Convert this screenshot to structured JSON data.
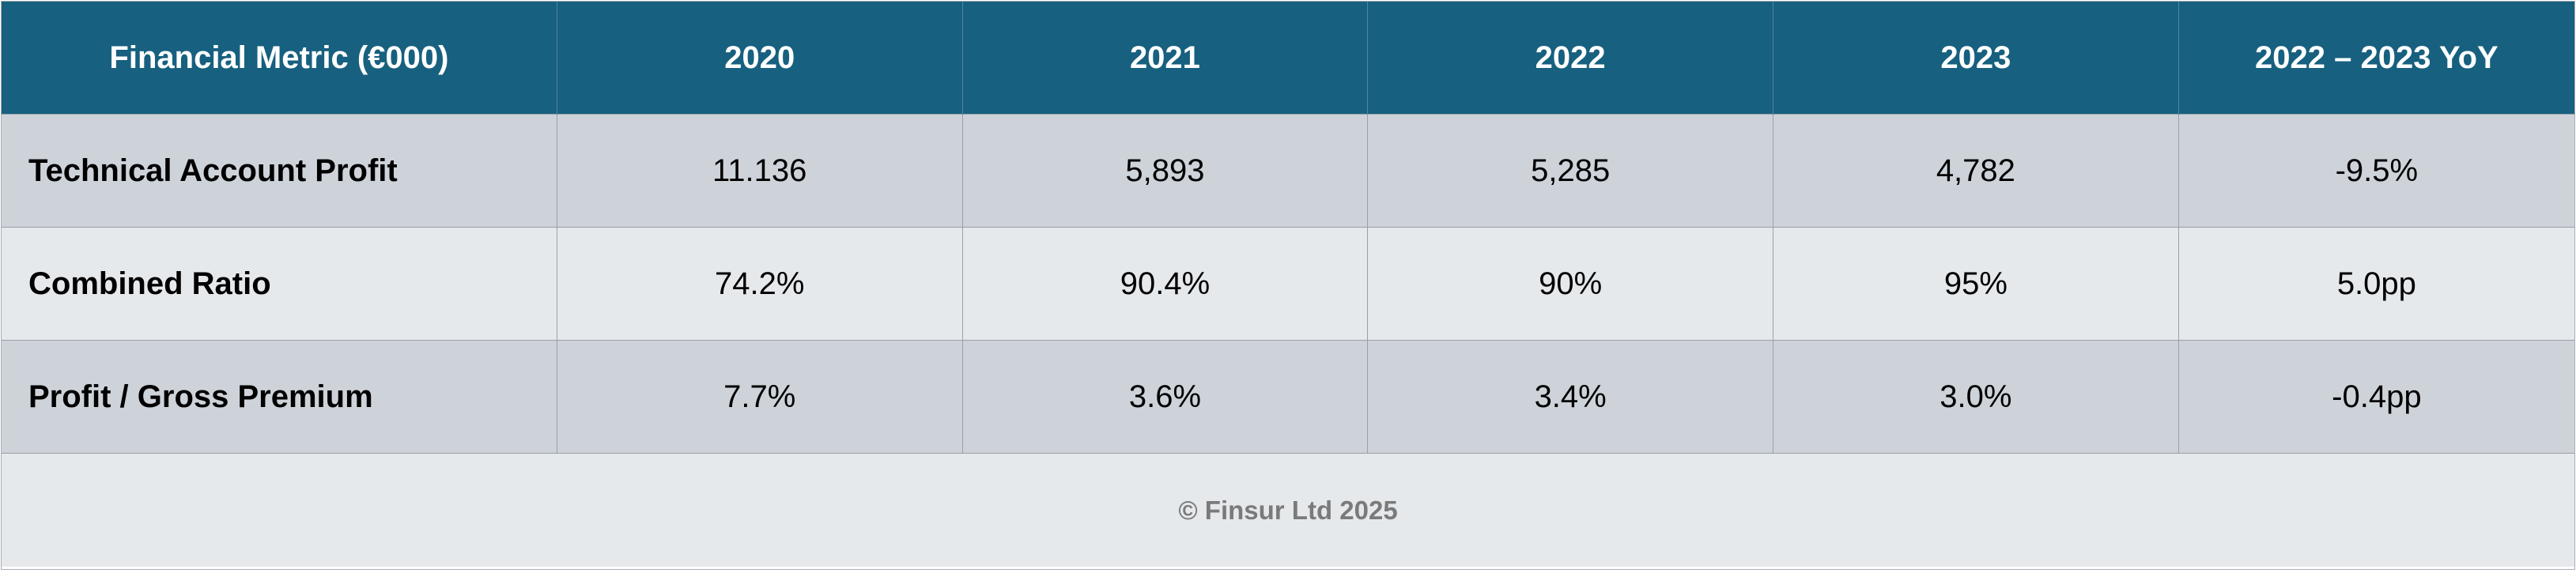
{
  "table": {
    "headers": [
      "Financial Metric (€000)",
      "2020",
      "2021",
      "2022",
      "2023",
      "2022 – 2023 YoY"
    ],
    "rows": [
      {
        "metric": "Technical Account Profit",
        "values": [
          "11.136",
          "5,893",
          "5,285",
          "4,782",
          "-9.5%"
        ]
      },
      {
        "metric": "Combined Ratio",
        "values": [
          "74.2%",
          "90.4%",
          "90%",
          "95%",
          "5.0pp"
        ]
      },
      {
        "metric": "Profit / Gross Premium",
        "values": [
          "7.7%",
          "3.6%",
          "3.4%",
          "3.0%",
          "-0.4pp"
        ]
      }
    ]
  },
  "footer": {
    "text": "© Finsur Ltd 2025"
  },
  "colors": {
    "header_bg": "#17607f",
    "header_text": "#ffffff",
    "row_dark": "#ced3da",
    "row_light": "#e6e9ec",
    "footer_text": "#7a7a7a"
  }
}
